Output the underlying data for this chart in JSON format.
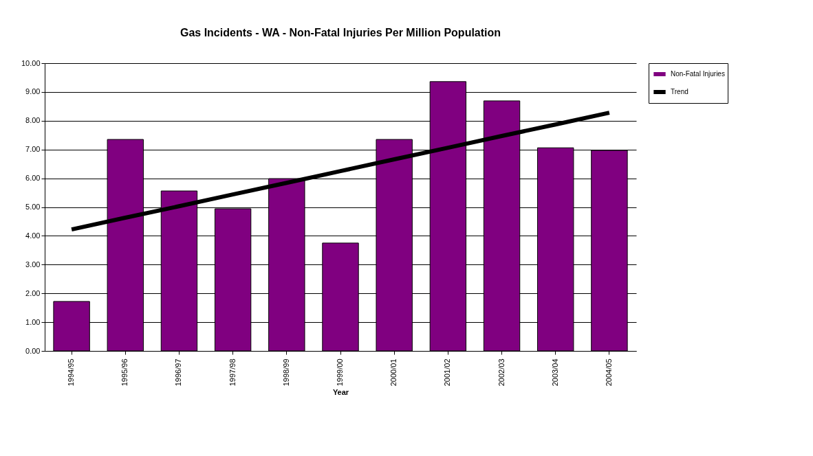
{
  "chart_data": {
    "type": "bar",
    "title": "Gas Incidents - WA - Non-Fatal Injuries Per Million Population",
    "xlabel": "Year",
    "categories": [
      "1994/95",
      "1995/96",
      "1996/97",
      "1997/98",
      "1998/99",
      "1999/00",
      "2000/01",
      "2001/02",
      "2002/03",
      "2003/04",
      "2004/05"
    ],
    "series": [
      {
        "name": "Non-Fatal Injuries",
        "color": "#800080",
        "values": [
          1.72,
          7.35,
          5.56,
          4.94,
          5.99,
          3.75,
          7.35,
          9.36,
          8.69,
          7.06,
          6.97
        ]
      },
      {
        "name": "Trend",
        "type": "line",
        "color": "#000000",
        "values": [
          4.22,
          4.63,
          5.03,
          5.44,
          5.84,
          6.25,
          6.66,
          7.06,
          7.47,
          7.87,
          8.28
        ]
      }
    ],
    "ylim": [
      0,
      10
    ],
    "yticks": [
      {
        "value": 0,
        "label": "0.00"
      },
      {
        "value": 1,
        "label": "1.00"
      },
      {
        "value": 2,
        "label": "2.00"
      },
      {
        "value": 3,
        "label": "3.00"
      },
      {
        "value": 4,
        "label": "4.00"
      },
      {
        "value": 5,
        "label": "5.00"
      },
      {
        "value": 6,
        "label": "6.00"
      },
      {
        "value": 7,
        "label": "7.00"
      },
      {
        "value": 8,
        "label": "8.00"
      },
      {
        "value": 9,
        "label": "9.00"
      },
      {
        "value": 10,
        "label": "10.00"
      }
    ],
    "grid": "y",
    "legend": "top right"
  }
}
